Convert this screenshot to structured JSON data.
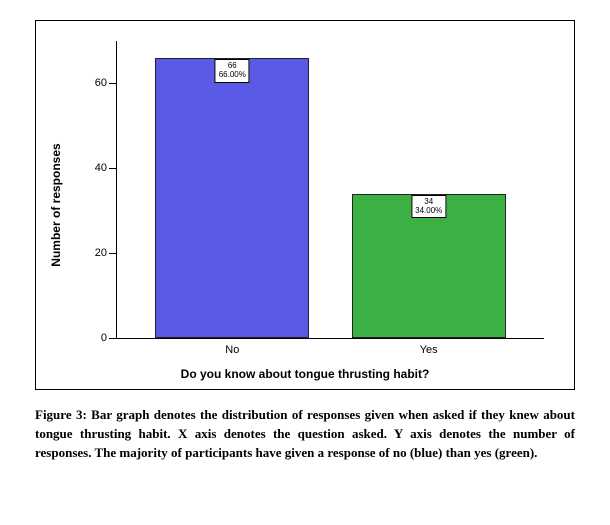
{
  "chart": {
    "type": "bar",
    "background_color": "#ffffff",
    "border_color": "#000000",
    "plot": {
      "ylim": [
        0,
        70
      ],
      "yticks": [
        0,
        20,
        40,
        60
      ],
      "ytick_labels": [
        "0",
        "20",
        "40",
        "60"
      ],
      "categories": [
        "No",
        "Yes"
      ],
      "category_positions_pct": [
        27,
        73
      ],
      "bar_width_pct": 36
    },
    "series": [
      {
        "category": "No",
        "value": 66,
        "percent_label": "66.00%",
        "count_label": "66",
        "color": "#5a5ae6",
        "border_color": "#222222"
      },
      {
        "category": "Yes",
        "value": 34,
        "percent_label": "34.00%",
        "count_label": "34",
        "color": "#3cb043",
        "border_color": "#222222"
      }
    ],
    "y_axis_title": "Number of responses",
    "x_axis_title": "Do you know about tongue thrusting habit?",
    "label_fontsize": 12,
    "tick_fontsize": 11,
    "bar_label_fontsize": 8
  },
  "caption": {
    "text": "Figure 3: Bar graph denotes the distribution of responses given when asked if they knew about tongue thrusting habit. X axis denotes the question asked. Y axis denotes the number of responses. The majority of participants have given a response of no (blue) than yes (green).",
    "font_family": "Georgia, 'Times New Roman', serif",
    "font_size": 13,
    "font_weight": "bold"
  }
}
